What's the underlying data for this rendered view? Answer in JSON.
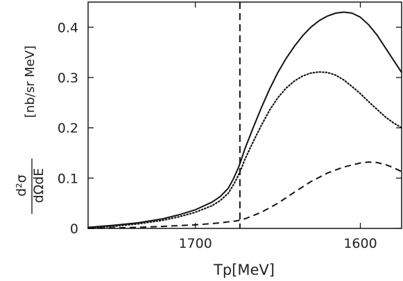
{
  "chart_data": {
    "type": "line",
    "title": "",
    "xlabel": "Tp[MeV]",
    "ylabel": "[nb/sr MeV]",
    "ylabel_numerator": "d²σ",
    "ylabel_denominator": "dΩdE",
    "x_reversed": true,
    "xlim": [
      1765,
      1575
    ],
    "ylim": [
      0,
      0.45
    ],
    "x_ticks": [
      1700,
      1600
    ],
    "x_tick_labels": [
      "1700",
      "1600"
    ],
    "y_ticks": [
      0,
      0.1,
      0.2,
      0.3,
      0.4
    ],
    "y_tick_labels": [
      "0",
      "0.1",
      "0.2",
      "0.3",
      "0.4"
    ],
    "grid": false,
    "vline": {
      "x": 1673,
      "style": "dashed"
    },
    "series": [
      {
        "style": "solid",
        "color": "#111111",
        "x": [
          1765,
          1750,
          1735,
          1720,
          1710,
          1700,
          1690,
          1685,
          1680,
          1677,
          1674,
          1672,
          1670,
          1665,
          1660,
          1655,
          1650,
          1645,
          1640,
          1635,
          1630,
          1625,
          1620,
          1615,
          1610,
          1605,
          1600,
          1595,
          1590,
          1585,
          1580,
          1575
        ],
        "y": [
          0.002,
          0.006,
          0.011,
          0.019,
          0.027,
          0.037,
          0.052,
          0.063,
          0.08,
          0.098,
          0.12,
          0.138,
          0.158,
          0.2,
          0.24,
          0.277,
          0.31,
          0.338,
          0.362,
          0.383,
          0.4,
          0.413,
          0.422,
          0.428,
          0.43,
          0.428,
          0.42,
          0.405,
          0.385,
          0.36,
          0.335,
          0.31
        ]
      },
      {
        "style": "dotted",
        "color": "#111111",
        "x": [
          1765,
          1750,
          1735,
          1720,
          1710,
          1700,
          1690,
          1685,
          1680,
          1677,
          1674,
          1672,
          1670,
          1665,
          1660,
          1655,
          1650,
          1645,
          1640,
          1635,
          1630,
          1625,
          1620,
          1615,
          1610,
          1605,
          1600,
          1595,
          1590,
          1585,
          1580,
          1575
        ],
        "y": [
          0.001,
          0.004,
          0.009,
          0.016,
          0.023,
          0.032,
          0.045,
          0.055,
          0.07,
          0.086,
          0.105,
          0.12,
          0.137,
          0.172,
          0.205,
          0.235,
          0.26,
          0.279,
          0.293,
          0.303,
          0.309,
          0.311,
          0.31,
          0.305,
          0.295,
          0.282,
          0.268,
          0.252,
          0.237,
          0.222,
          0.21,
          0.2
        ]
      },
      {
        "style": "dashed",
        "color": "#111111",
        "x": [
          1765,
          1750,
          1735,
          1720,
          1700,
          1685,
          1675,
          1670,
          1660,
          1650,
          1640,
          1630,
          1620,
          1610,
          1600,
          1595,
          1590,
          1585,
          1580,
          1575
        ],
        "y": [
          0.0,
          0.001,
          0.002,
          0.004,
          0.007,
          0.011,
          0.015,
          0.019,
          0.032,
          0.05,
          0.072,
          0.093,
          0.11,
          0.122,
          0.13,
          0.132,
          0.131,
          0.127,
          0.121,
          0.113
        ]
      }
    ]
  }
}
